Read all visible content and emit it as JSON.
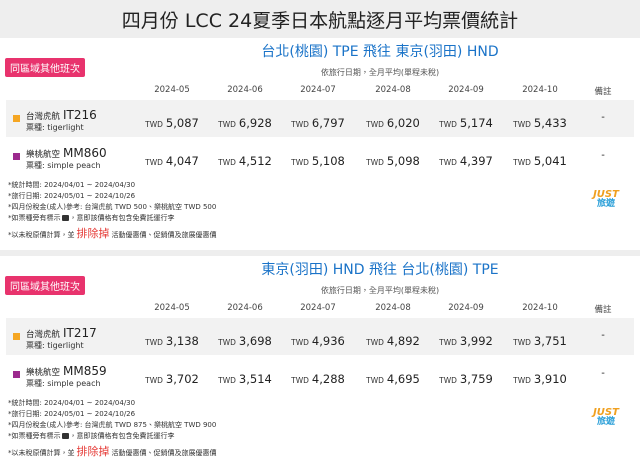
{
  "title": "四月份 LCC 24夏季日本航點逐月平均票價統計",
  "sections": [
    {
      "badge": "同區域其他班次",
      "route": "台北(桃園) TPE 飛往 東京(羽田) HND",
      "subtitle": "依旅行日期，全月平均(單程未稅)",
      "columns": [
        "2024-05",
        "2024-06",
        "2024-07",
        "2024-08",
        "2024-09",
        "2024-10",
        "備註"
      ],
      "rows": [
        {
          "airline": "台灣虎航",
          "flight": "IT216",
          "fare": "票種: tigerlight",
          "color": "#f5a623",
          "currency": "TWD",
          "prices": [
            "5,087",
            "6,928",
            "6,797",
            "6,020",
            "5,174",
            "5,433"
          ],
          "remark": "-"
        },
        {
          "airline": "樂桃航空",
          "flight": "MM860",
          "fare": "票種: simple peach",
          "color": "#9c2a8e",
          "currency": "TWD",
          "prices": [
            "4,047",
            "4,512",
            "5,108",
            "5,098",
            "4,397",
            "5,041"
          ],
          "remark": "-"
        }
      ],
      "notes": [
        "*統計時間: 2024/04/01 ~ 2024/04/30",
        "*旅行日期: 2024/05/01 ~ 2024/10/26",
        "*四月份稅金(成人)參考: 台灣虎航 TWD 500、樂桃航空 TWD 500"
      ],
      "baggage_note": {
        "before": "*如票種旁有標示",
        "after": "，意即該價格有包含免費託運行李"
      },
      "exclusion": {
        "before": "*以未稅原價計算，並",
        "highlight": "排除掉",
        "after": "活動優惠價、促銷價及旅展優惠價"
      },
      "logo": {
        "top": "JUST",
        "bottom": "旅遊"
      }
    },
    {
      "badge": "同區域其他班次",
      "route": "東京(羽田) HND 飛往 台北(桃園) TPE",
      "subtitle": "依旅行日期，全月平均(單程未稅)",
      "columns": [
        "2024-05",
        "2024-06",
        "2024-07",
        "2024-08",
        "2024-09",
        "2024-10",
        "備註"
      ],
      "rows": [
        {
          "airline": "台灣虎航",
          "flight": "IT217",
          "fare": "票種: tigerlight",
          "color": "#f5a623",
          "currency": "TWD",
          "prices": [
            "3,138",
            "3,698",
            "4,936",
            "4,892",
            "3,992",
            "3,751"
          ],
          "remark": "-"
        },
        {
          "airline": "樂桃航空",
          "flight": "MM859",
          "fare": "票種: simple peach",
          "color": "#9c2a8e",
          "currency": "TWD",
          "prices": [
            "3,702",
            "3,514",
            "4,288",
            "4,695",
            "3,759",
            "3,910"
          ],
          "remark": "-"
        }
      ],
      "notes": [
        "*統計時間: 2024/04/01 ~ 2024/04/30",
        "*旅行日期: 2024/05/01 ~ 2024/10/26",
        "*四月份稅金(成人)參考: 台灣虎航 TWD 875、樂桃航空 TWD 900"
      ],
      "baggage_note": {
        "before": "*如票種旁有標示",
        "after": "，意即該價格有包含免費託運行李"
      },
      "exclusion": {
        "before": "*以未稅原價計算，並",
        "highlight": "排除掉",
        "after": "活動優惠價、促銷價及旅展優惠價"
      },
      "logo": {
        "top": "JUST",
        "bottom": "旅遊"
      }
    }
  ]
}
